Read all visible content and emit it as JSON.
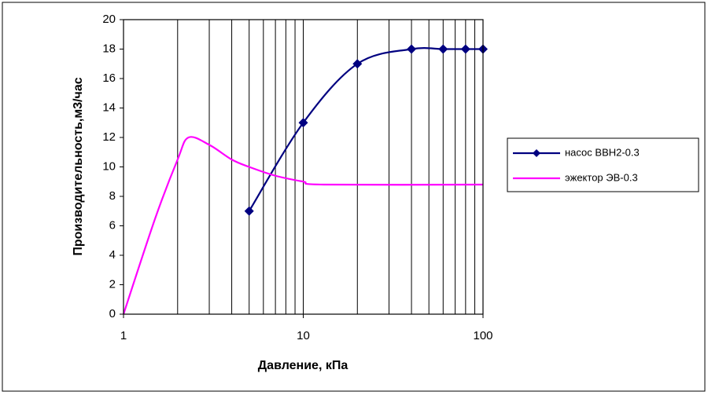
{
  "chart_data": {
    "type": "line",
    "x_label": "Давление, кПа",
    "y_label": "Производительность,м3/час",
    "x_log": true,
    "xlim": [
      1,
      100
    ],
    "xticks": [
      1,
      10,
      100
    ],
    "ylim": [
      0,
      20
    ],
    "yticks": [
      0,
      2,
      4,
      6,
      8,
      10,
      12,
      14,
      16,
      18,
      20
    ],
    "grid": "x",
    "minor_grid": true,
    "legend": "right",
    "series": [
      {
        "name": "насос ВВН2-0.3",
        "color": "#000080",
        "marker": "diamond",
        "x": [
          5,
          10,
          20,
          40,
          60,
          80,
          100
        ],
        "values": [
          7,
          13,
          17,
          18,
          18,
          18,
          18
        ]
      },
      {
        "name": "эжектор ЭВ-0.3",
        "color": "#ff00ff",
        "marker": "none",
        "x": [
          1,
          1.5,
          2,
          2.3,
          3,
          4,
          5,
          7,
          10,
          13,
          100
        ],
        "values": [
          0,
          6.5,
          10.5,
          12,
          11.5,
          10.5,
          10,
          9.4,
          9,
          8.8,
          8.8
        ]
      }
    ]
  }
}
